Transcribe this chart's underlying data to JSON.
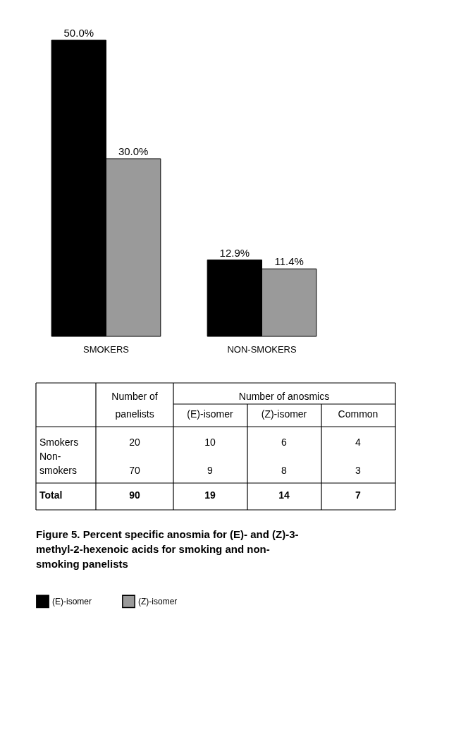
{
  "chart_data": [
    {
      "type": "bar",
      "categories": [
        "SMOKERS",
        "NON-SMOKERS"
      ],
      "series": [
        {
          "name": "(E)-isomer",
          "color": "#000000",
          "values": [
            50.0,
            12.9
          ],
          "value_labels": [
            "50.0%",
            "12.9%"
          ]
        },
        {
          "name": "(Z)-isomer",
          "color": "#9a9a9a",
          "values": [
            30.0,
            11.4
          ],
          "value_labels": [
            "30.0%",
            "11.4%"
          ]
        }
      ],
      "legend": "bottom",
      "grid": false,
      "tick_labels": "x"
    },
    {
      "type": "other",
      "annotations": [
        "Number of",
        "panelists",
        "Number of anosmics",
        "(E)-isomer",
        "(Z)-isomer",
        "Common",
        "Smokers",
        "20",
        "10",
        "6",
        "4",
        "Non-",
        "smokers",
        "70",
        "9",
        "8",
        "3",
        "Total",
        "90",
        "19",
        "14",
        "7",
        "Figure 5. Percent specific anosmia for (E)- and (Z)-3-",
        "methyl-2-hexenoic acids for smoking and non-",
        "smoking panelists"
      ]
    }
  ]
}
